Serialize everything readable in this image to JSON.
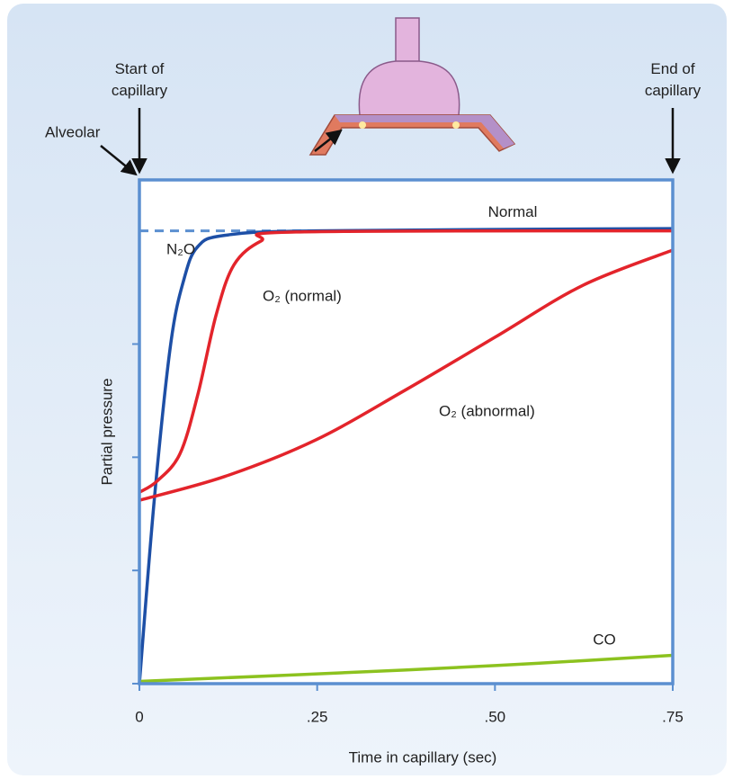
{
  "chart_data": {
    "type": "line",
    "xlabel": "Time in capillary (sec)",
    "ylabel": "Partial pressure",
    "xlim": [
      0,
      0.75
    ],
    "xticks": [
      0,
      {
        "value": 0.25,
        "label": ".25"
      },
      {
        "value": 0.5,
        "label": ".50"
      },
      {
        "value": 0.75,
        "label": ".75"
      }
    ],
    "ylim": [
      0,
      4.45
    ],
    "yticks": [
      0,
      1,
      2,
      3
    ],
    "alveolar_level": 4.0,
    "alveolar_label": "Normal",
    "annotations": [
      "Start of capillary",
      "End of capillary",
      "Alveolar"
    ],
    "series": [
      {
        "name": "N₂O",
        "color": "#1d4fa6",
        "x": [
          0,
          0.021,
          0.044,
          0.063,
          0.082,
          0.12,
          0.25,
          0.75
        ],
        "values": [
          0,
          1.63,
          3.0,
          3.58,
          3.86,
          3.96,
          4.0,
          4.02
        ]
      },
      {
        "name": "O₂ (normal)",
        "color": "#e3242b",
        "x": [
          0,
          0.025,
          0.057,
          0.082,
          0.108,
          0.133,
          0.171,
          0.22,
          0.75
        ],
        "values": [
          1.69,
          1.79,
          2.03,
          2.55,
          3.26,
          3.7,
          3.91,
          3.99,
          4.0
        ]
      },
      {
        "name": "O₂ (abnormal)",
        "color": "#e3242b",
        "x": [
          0,
          0.12,
          0.247,
          0.373,
          0.5,
          0.624,
          0.75
        ],
        "values": [
          1.62,
          1.83,
          2.15,
          2.59,
          3.06,
          3.52,
          3.83
        ]
      },
      {
        "name": "CO",
        "color": "#8cc21f",
        "x": [
          0,
          0.373,
          0.56,
          0.75
        ],
        "values": [
          0.02,
          0.12,
          0.18,
          0.25
        ]
      }
    ]
  }
}
